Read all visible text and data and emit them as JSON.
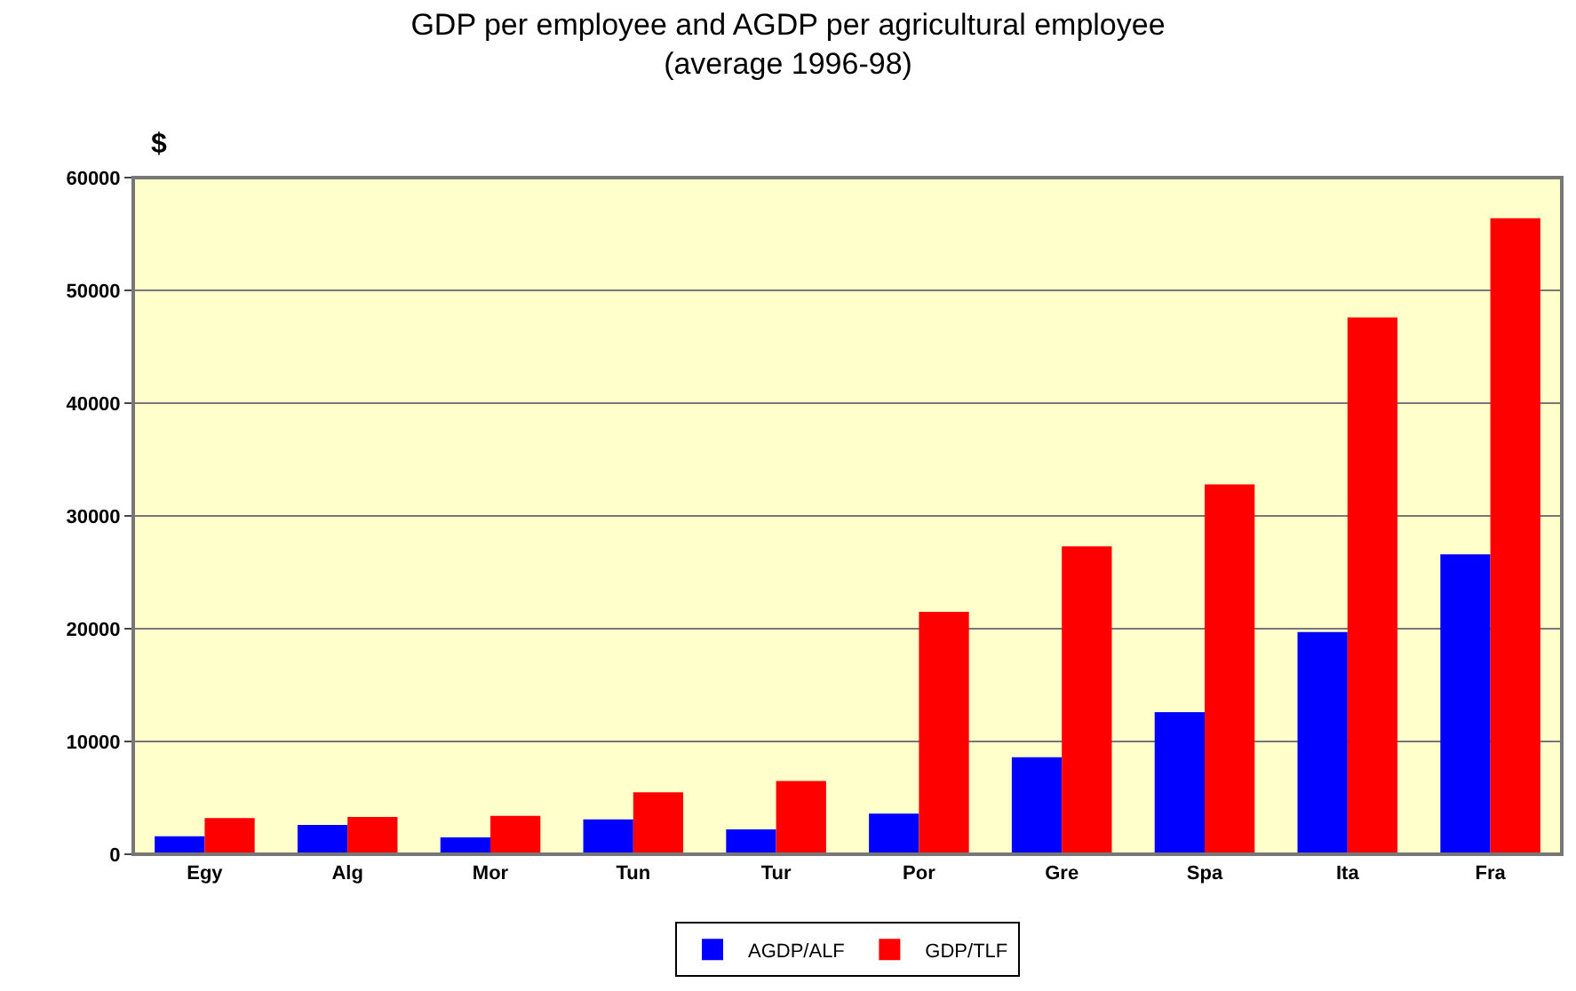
{
  "chart_data": {
    "type": "bar",
    "title": "GDP per employee and AGDP per agricultural employee\n(average 1996-98)",
    "ylabel": "$",
    "categories": [
      "Egy",
      "Alg",
      "Mor",
      "Tun",
      "Tur",
      "Por",
      "Gre",
      "Spa",
      "Ita",
      "Fra"
    ],
    "series": [
      {
        "name": "AGDP/ALF",
        "color": "#0000ff",
        "values": [
          1600,
          2600,
          1500,
          3100,
          2200,
          3600,
          8600,
          12600,
          19700,
          26600
        ]
      },
      {
        "name": "GDP/TLF",
        "color": "#ff0000",
        "values": [
          3200,
          3300,
          3400,
          5500,
          6500,
          21500,
          27300,
          32800,
          47600,
          56400
        ]
      }
    ],
    "ylim": [
      0,
      60000
    ],
    "yticks": [
      0,
      10000,
      20000,
      30000,
      40000,
      50000,
      60000
    ],
    "grid": "y",
    "legend": "bottom"
  }
}
